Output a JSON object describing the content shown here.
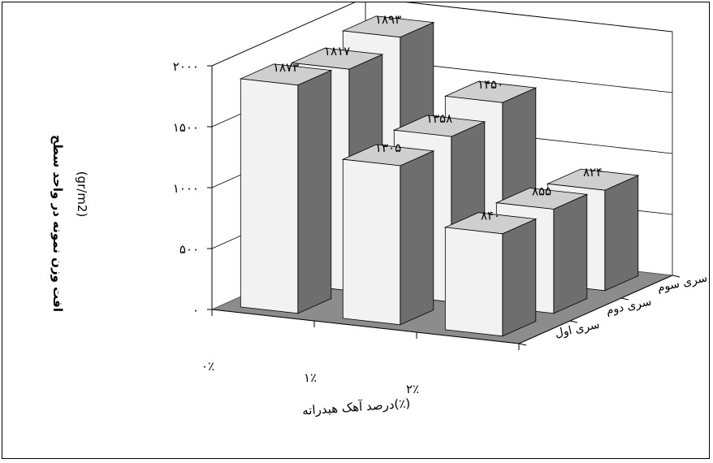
{
  "chart_data": {
    "type": "bar",
    "subtype": "3d-clustered-column",
    "xlabel": "درصد آهک هیدراته(٪)",
    "ylabel": "افت وزن نمونه در واحد سطح",
    "yunit": "(gr/m2)",
    "ylim": [
      0,
      2000
    ],
    "yticks": [
      0,
      500,
      1000,
      1500,
      2000
    ],
    "ytick_labels": [
      "۰",
      "۵۰۰",
      "۱۰۰۰",
      "۱۵۰۰",
      "۲۰۰۰"
    ],
    "categories": [
      "۰٪",
      "۱٪",
      "۲٪"
    ],
    "series": [
      {
        "name": "سری اول",
        "values": [
          1873,
          1305,
          840
        ],
        "labels": [
          "۱۸۷۳",
          "۱۳۰۵",
          "۸۴۰"
        ]
      },
      {
        "name": "سری دوم",
        "values": [
          1817,
          1358,
          855
        ],
        "labels": [
          "۱۸۱۷",
          "۱۳۵۸",
          "۸۵۵"
        ]
      },
      {
        "name": "سری سوم",
        "values": [
          1893,
          1450,
          824
        ],
        "labels": [
          "۱۸۹۳",
          "۱۴۵۰",
          "۸۲۴"
        ]
      }
    ],
    "grid": true,
    "colors": {
      "bar_front": "#f2f2f2",
      "bar_side": "#6e6e6e",
      "bar_top": "#cfcfcf",
      "floor": "#8c8c8c",
      "wall": "#ffffff",
      "grid": "#000000"
    }
  }
}
